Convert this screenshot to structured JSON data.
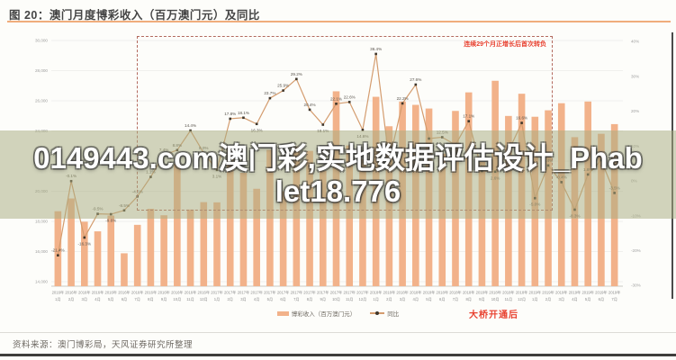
{
  "figure": {
    "title": "图 20：澳门月度博彩收入（百万澳门元）及同比",
    "source": "资料来源：澳门博彩局，天风证券研究所整理"
  },
  "watermark": {
    "line1": "0149443.com澳门彩,实地数据评估设计_Phab",
    "line2": "let18.776"
  },
  "annotation": {
    "box_label": "连续29个月正增长后首次转负",
    "bridge_label": "大桥开通后"
  },
  "legend": {
    "bars": "博彩收入（百万澳门元）",
    "line": "同比"
  },
  "colors": {
    "bar": "#f2b28a",
    "line": "#d49c6e",
    "marker": "#3f362b",
    "red": "#e8402f",
    "underline": "#f0ad7c",
    "grid": "#ebebe8",
    "axis_line": "#c9c9c4",
    "tick_text": "#a0a0a0",
    "xlabel_text": "#8d8d8d",
    "point_label": "#57524b",
    "overlay": "rgba(168,173,128,0.52)"
  },
  "chart_data": {
    "type": "bar+line combo",
    "title": "澳门月度博彩收入（百万澳门元）及同比",
    "xlabel": "",
    "ylabel_left": "博彩收入（百万澳门元）",
    "ylabel_right": "同比",
    "grid": "horizontal only",
    "legend_position": "bottom center",
    "categories": [
      "2016年1月",
      "2016年2月",
      "2016年3月",
      "2016年4月",
      "2016年5月",
      "2016年6月",
      "2016年7月",
      "2016年8月",
      "2016年9月",
      "2016年10月",
      "2016年11月",
      "2016年12月",
      "2017年1月",
      "2017年2月",
      "2017年3月",
      "2017年4月",
      "2017年5月",
      "2017年6月",
      "2017年7月",
      "2017年8月",
      "2017年9月",
      "2017年10月",
      "2017年11月",
      "2017年12月",
      "2018年1月",
      "2018年2月",
      "2018年3月",
      "2018年4月",
      "2018年5月",
      "2018年6月",
      "2018年7月",
      "2018年8月",
      "2018年9月",
      "2018年10月",
      "2018年11月",
      "2018年12月",
      "2019年1月",
      "2019年2月",
      "2019年3月",
      "2019年4月",
      "2019年5月",
      "2019年6月",
      "2019年7月"
    ],
    "series": [
      {
        "name": "博彩收入（百万澳门元）",
        "type": "bar",
        "axis": "left",
        "values": [
          18674,
          19521,
          17980,
          17340,
          18389,
          15885,
          17771,
          18836,
          18405,
          21818,
          18786,
          19277,
          19264,
          22992,
          21224,
          20164,
          22744,
          19992,
          22965,
          22679,
          21363,
          26630,
          23038,
          22120,
          26265,
          24312,
          25952,
          25730,
          25488,
          22490,
          25327,
          26559,
          21952,
          27328,
          24995,
          26468,
          24942,
          25370,
          25840,
          23588,
          25952,
          23812,
          24453
        ]
      },
      {
        "name": "同比",
        "type": "line",
        "axis": "right",
        "values": [
          -21.4,
          -0.1,
          -16.3,
          -9.5,
          -9.6,
          -8.5,
          -4.5,
          1.1,
          7.4,
          8.8,
          14.4,
          8.0,
          3.1,
          17.8,
          18.1,
          16.3,
          23.7,
          25.9,
          29.2,
          20.4,
          16.1,
          22.1,
          22.6,
          14.6,
          36.4,
          5.7,
          22.2,
          27.6,
          12.1,
          12.5,
          10.3,
          17.1,
          2.8,
          2.6,
          8.5,
          16.6,
          -5.0,
          4.4,
          -0.4,
          -8.3,
          1.8,
          5.9,
          -3.5
        ],
        "labels": [
          "-21.4%",
          "-0.1%",
          "-16.3%",
          "-9.5%",
          "-9.6%",
          "-8.5%",
          "-4.5%",
          "1.1%",
          "7.4%",
          "8.8%",
          "14.4%",
          "8.0%",
          "3.1%",
          "17.8%",
          "18.1%",
          "16.3%",
          "23.7%",
          "25.9%",
          "29.2%",
          "20.4%",
          "16.1%",
          "22.1%",
          "22.6%",
          "14.6%",
          "36.4%",
          "5.7%",
          "22.2%",
          "27.6%",
          "12.1%",
          "12.5%",
          "10.3%",
          "17.1%",
          "2.8%",
          "2.6%",
          "8.5%",
          "16.6%",
          "-5.0%",
          "4.4%",
          "-0.4%",
          "-8.3%",
          "1.8%",
          "5.9%",
          "-3.5%"
        ]
      }
    ],
    "left_axis": {
      "min": 14000,
      "max": 30000,
      "ticks": [
        "30,000",
        "28,000",
        "26,000",
        "24,000",
        "22,000",
        "20,000",
        "18,000",
        "16,000",
        "14,000"
      ]
    },
    "right_axis": {
      "min": -30,
      "max": 40,
      "ticks": [
        "40%",
        "30%",
        "20%",
        "10%",
        "0%",
        "-10%",
        "-20%",
        "-30%"
      ]
    }
  }
}
